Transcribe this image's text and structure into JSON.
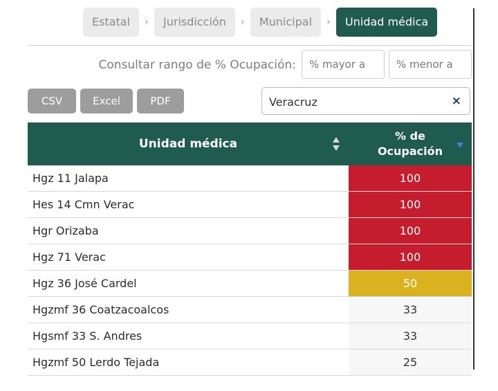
{
  "breadcrumb": [
    {
      "label": "Estatal",
      "active": false
    },
    {
      "label": "Jurisdicción",
      "active": false
    },
    {
      "label": "Municipal",
      "active": false
    },
    {
      "label": "Unidad médica",
      "active": true
    }
  ],
  "breadcrumb_separator": "›",
  "range": {
    "label": "Consultar rango de % Ocupación:",
    "min_placeholder": "% mayor a",
    "max_placeholder": "% menor a"
  },
  "export": {
    "csv": "CSV",
    "excel": "Excel",
    "pdf": "PDF"
  },
  "search": {
    "value": "Veracruz",
    "clear_icon": "×"
  },
  "table": {
    "col_name": "Unidad médica",
    "col_occ_line1": "% de",
    "col_occ_line2": "Ocupación",
    "rows": [
      {
        "name": "Hgz 11 Jalapa",
        "occ": "100",
        "level": "high"
      },
      {
        "name": "Hes 14 Cmn Verac",
        "occ": "100",
        "level": "high"
      },
      {
        "name": "Hgr Orizaba",
        "occ": "100",
        "level": "high"
      },
      {
        "name": "Hgz 71 Verac",
        "occ": "100",
        "level": "high"
      },
      {
        "name": "Hgz 36 José Cardel",
        "occ": "50",
        "level": "mid"
      },
      {
        "name": "Hgzmf 36 Coatzacoalcos",
        "occ": "33",
        "level": "low"
      },
      {
        "name": "Hgsmf 33 S. Andres",
        "occ": "33",
        "level": "low"
      },
      {
        "name": "Hgzmf 50 Lerdo Tejada",
        "occ": "25",
        "level": "low"
      }
    ]
  },
  "colors": {
    "header": "#1f5b4e",
    "high": "#c51d2e",
    "mid": "#dab21f",
    "button": "#9d9d9d"
  }
}
